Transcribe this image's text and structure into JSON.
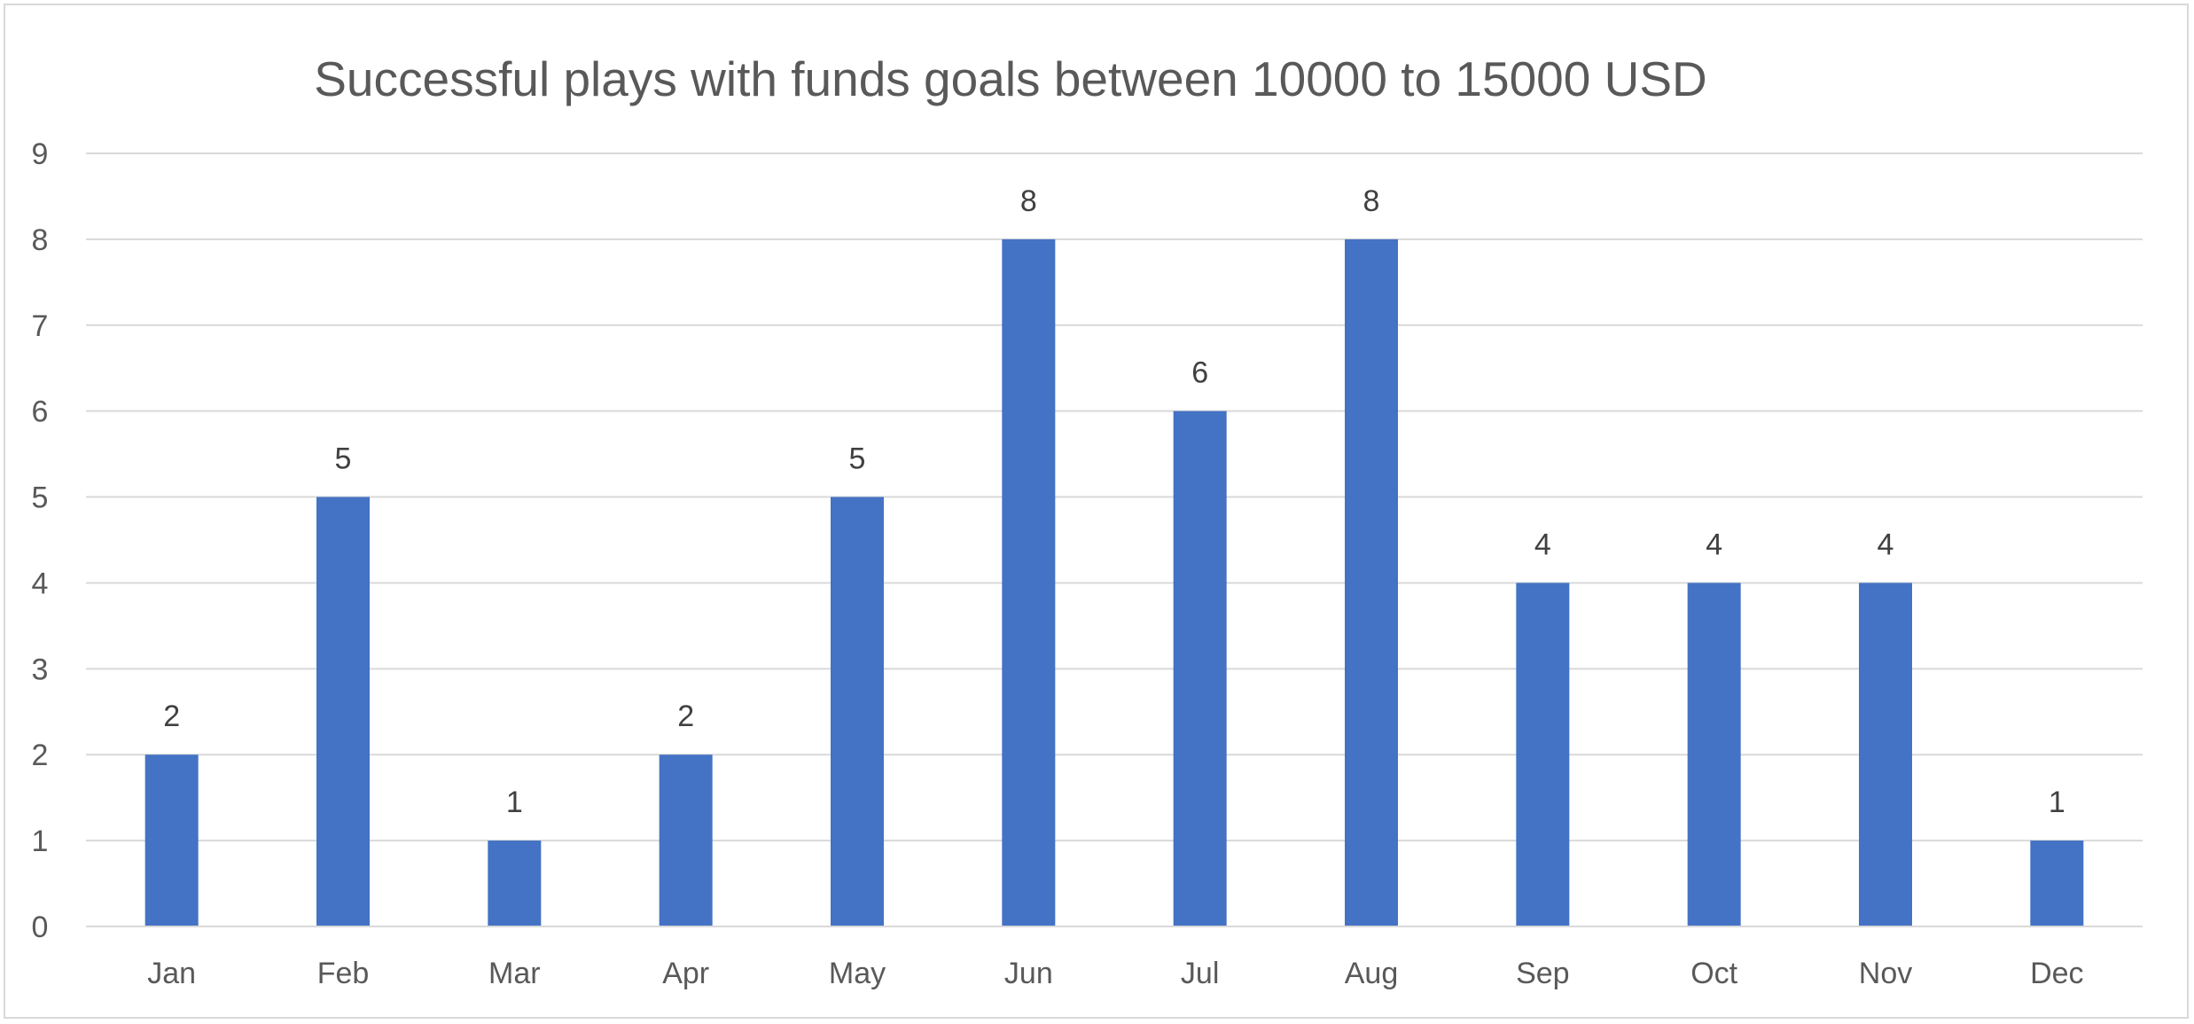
{
  "chart_data": {
    "type": "bar",
    "title": "Successful plays with funds goals between 10000 to 15000 USD",
    "xlabel": "",
    "ylabel": "",
    "categories": [
      "Jan",
      "Feb",
      "Mar",
      "Apr",
      "May",
      "Jun",
      "Jul",
      "Aug",
      "Sep",
      "Oct",
      "Nov",
      "Dec"
    ],
    "values": [
      2,
      5,
      1,
      2,
      5,
      8,
      6,
      8,
      4,
      4,
      4,
      1
    ],
    "ylim": [
      0,
      9
    ],
    "yticks": [
      0,
      1,
      2,
      3,
      4,
      5,
      6,
      7,
      8,
      9
    ],
    "grid": true,
    "legend": "none",
    "data_labels": true,
    "colors": {
      "bar": "#4472c4",
      "grid": "#d9d9d9",
      "title": "#595959",
      "tick_labels": "#595959",
      "data_labels": "#404040"
    }
  }
}
